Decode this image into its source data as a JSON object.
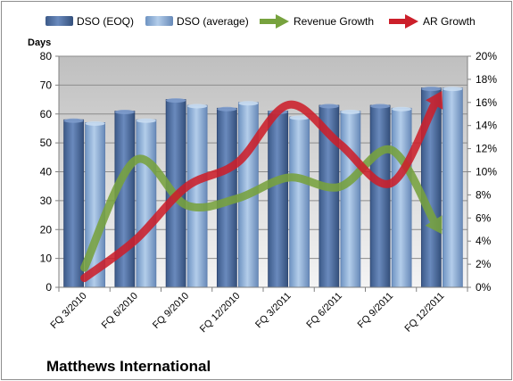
{
  "chart_data": {
    "type": "bar",
    "title": "Matthews International",
    "ylabel": "Days",
    "y2label": "",
    "categories": [
      "FQ 3/2010",
      "FQ 6/2010",
      "FQ 9/2010",
      "FQ 12/2010",
      "FQ 3/2011",
      "FQ 6/2011",
      "FQ 9/2011",
      "FQ 12/2011"
    ],
    "ylim": [
      0,
      80
    ],
    "yticks": [
      "0",
      "10",
      "20",
      "30",
      "40",
      "50",
      "60",
      "70",
      "80"
    ],
    "y2lim": [
      0,
      20
    ],
    "y2ticks": [
      "0%",
      "2%",
      "4%",
      "6%",
      "8%",
      "10%",
      "12%",
      "14%",
      "16%",
      "18%",
      "20%"
    ],
    "grid": true,
    "legend_position": "top",
    "series": [
      {
        "name": "DSO (EOQ)",
        "kind": "bar",
        "axis": "left",
        "color": "#4f6f9f",
        "values": [
          58,
          61,
          65,
          62,
          61,
          63,
          63,
          69
        ]
      },
      {
        "name": "DSO (average)",
        "kind": "bar",
        "axis": "left",
        "color": "#8fb0d6",
        "values": [
          57,
          58,
          63,
          64,
          59,
          61,
          62,
          69
        ]
      },
      {
        "name": "Revenue Growth",
        "kind": "arrow-line",
        "axis": "right",
        "color": "#77a23e",
        "values": [
          1.7,
          11.0,
          7.1,
          7.7,
          9.5,
          8.7,
          11.9,
          4.6
        ]
      },
      {
        "name": "AR Growth",
        "kind": "arrow-line",
        "axis": "right",
        "color": "#cc1f2a",
        "values": [
          0.8,
          4.1,
          8.7,
          10.8,
          15.8,
          12.4,
          9.0,
          17.0
        ]
      }
    ]
  }
}
